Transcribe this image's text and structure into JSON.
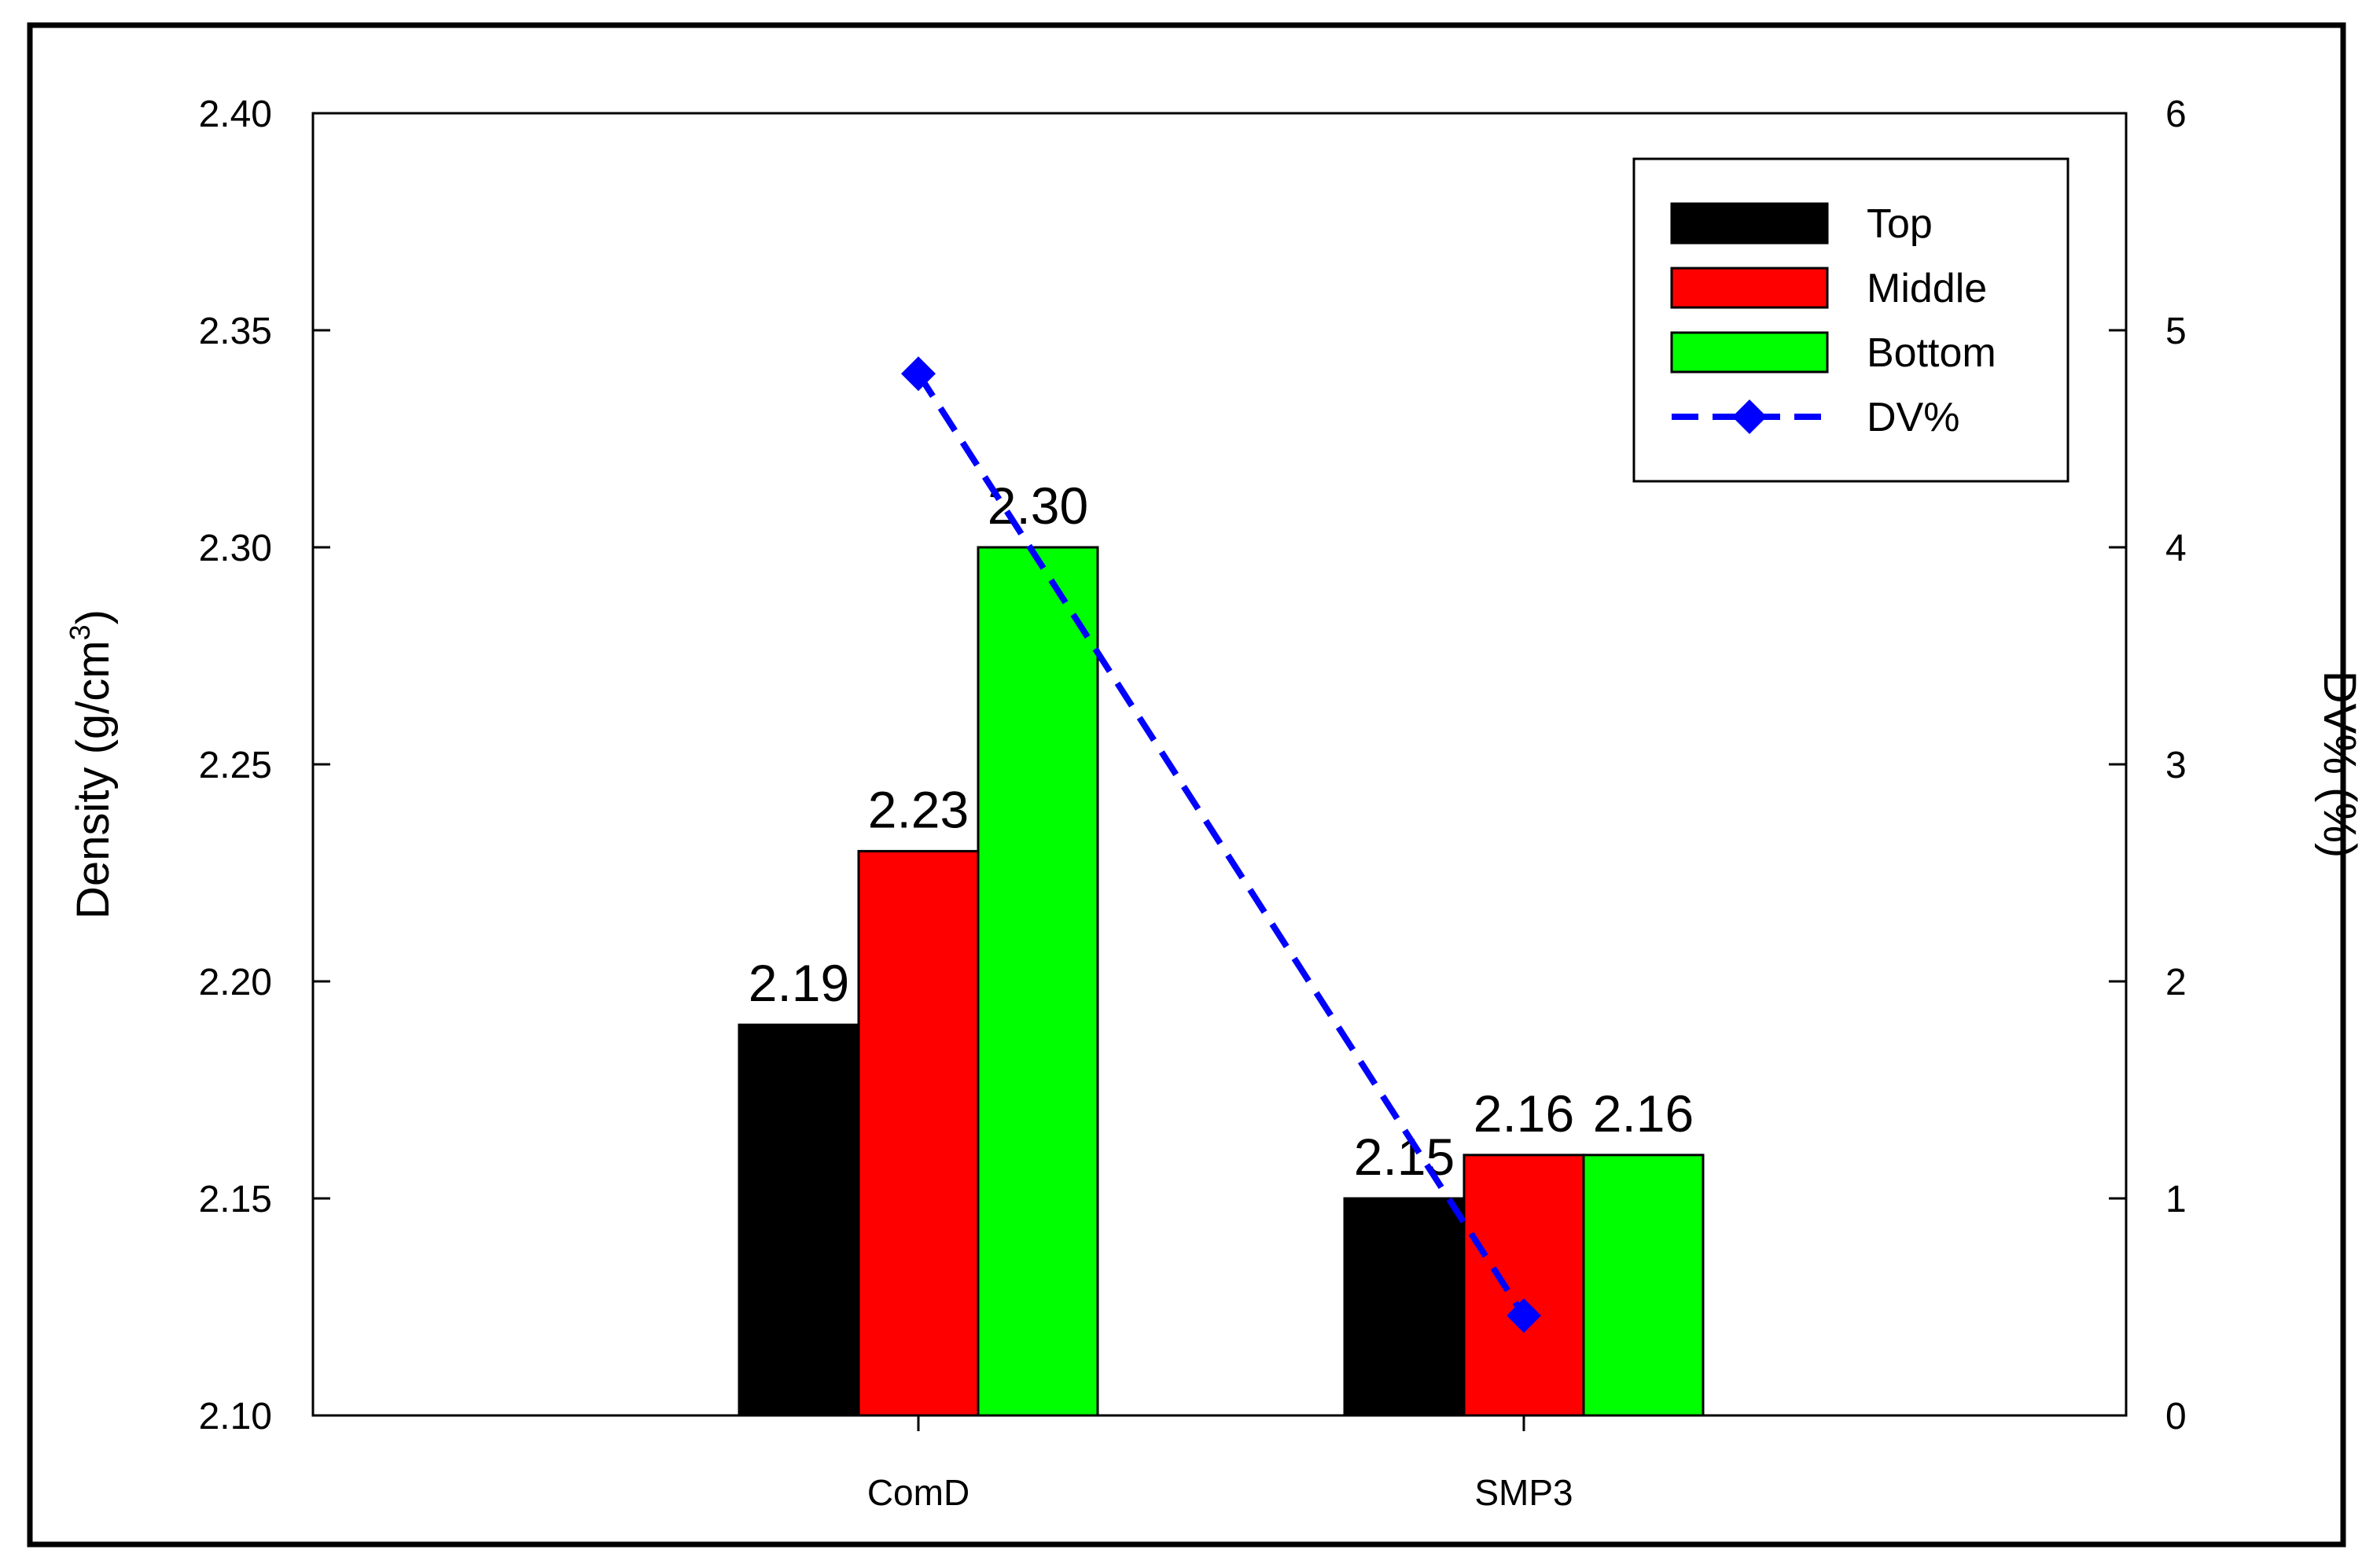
{
  "chart_data": {
    "type": "bar",
    "categories": [
      "ComD",
      "SMP3"
    ],
    "series": [
      {
        "name": "Top",
        "color": "#000000",
        "values": [
          2.19,
          2.15
        ],
        "labels": [
          "2.19",
          "2.15"
        ]
      },
      {
        "name": "Middle",
        "color": "#ff0000",
        "values": [
          2.23,
          2.16
        ],
        "labels": [
          "2.23",
          "2.16"
        ]
      },
      {
        "name": "Bottom",
        "color": "#00ff00",
        "values": [
          2.3,
          2.16
        ],
        "labels": [
          "2.30",
          "2.16"
        ]
      }
    ],
    "line_series": {
      "name": "DV%",
      "color": "#0000ff",
      "axis": "right",
      "style": "dashed",
      "marker": "diamond",
      "values": [
        4.8,
        0.46
      ]
    },
    "ylabel": "Density (g/cm",
    "ylabel_superscript": "3",
    "ylabel_suffix": ")",
    "y2label": "DV% (%)",
    "ylim": [
      2.1,
      2.4
    ],
    "y_ticks": [
      "2.10",
      "2.15",
      "2.20",
      "2.25",
      "2.30",
      "2.35",
      "2.40"
    ],
    "y2lim": [
      0,
      6
    ],
    "y2_ticks": [
      "0",
      "1",
      "2",
      "3",
      "4",
      "5",
      "6"
    ],
    "legend_position": "top-right",
    "grid": false
  }
}
